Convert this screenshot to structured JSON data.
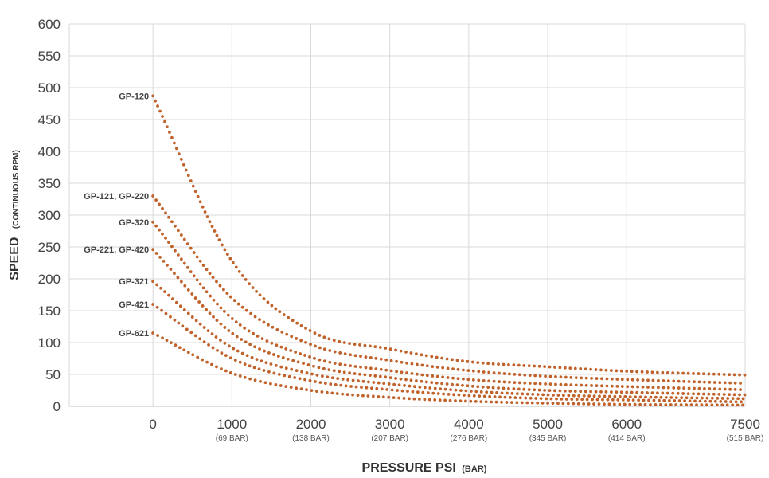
{
  "chart_data": {
    "type": "scatter",
    "title": "",
    "xlabel": "PRESSURE PSI",
    "xlabel_unit": "(BAR)",
    "ylabel": "SPEED",
    "ylabel_unit": "(CONTINUOUS RPM)",
    "xlim": [
      -1060,
      7500
    ],
    "ylim": [
      0,
      600
    ],
    "grid": true,
    "x_ticks": [
      {
        "value": 0,
        "label": "0",
        "sub": ""
      },
      {
        "value": 1000,
        "label": "1000",
        "sub": "(69 BAR)"
      },
      {
        "value": 2000,
        "label": "2000",
        "sub": "(138 BAR)"
      },
      {
        "value": 3000,
        "label": "3000",
        "sub": "(207 BAR)"
      },
      {
        "value": 4000,
        "label": "4000",
        "sub": "(276 BAR)"
      },
      {
        "value": 5000,
        "label": "5000",
        "sub": "(345 BAR)"
      },
      {
        "value": 6000,
        "label": "6000",
        "sub": "(414 BAR)"
      },
      {
        "value": 7500,
        "label": "7500",
        "sub": "(515 BAR)"
      }
    ],
    "y_ticks": [
      0,
      50,
      100,
      150,
      200,
      250,
      300,
      350,
      400,
      450,
      500,
      550,
      600
    ],
    "color": "#c0622a",
    "series": [
      {
        "name": "GP-120",
        "x": [
          0,
          1000,
          2000,
          3000,
          4000,
          5000,
          6000,
          7500
        ],
        "y": [
          487,
          228,
          118,
          90,
          70,
          62,
          55,
          49
        ]
      },
      {
        "name": "GP-121, GP-220",
        "x": [
          0,
          1000,
          2000,
          3000,
          4000,
          5000,
          6000,
          7500
        ],
        "y": [
          330,
          170,
          97,
          72,
          56,
          47,
          42,
          36
        ]
      },
      {
        "name": "GP-320",
        "x": [
          0,
          1000,
          2000,
          3000,
          4000,
          5000,
          6000,
          7500
        ],
        "y": [
          289,
          138,
          77,
          56,
          42,
          35,
          31,
          26
        ]
      },
      {
        "name": "GP-221, GP-420",
        "x": [
          0,
          1000,
          2000,
          3000,
          4000,
          5000,
          6000,
          7500
        ],
        "y": [
          246,
          115,
          64,
          45,
          32,
          25,
          22,
          18
        ]
      },
      {
        "name": "GP-321",
        "x": [
          0,
          1000,
          2000,
          3000,
          4000,
          5000,
          6000,
          7500
        ],
        "y": [
          196,
          92,
          51,
          35,
          24,
          18,
          15,
          12
        ]
      },
      {
        "name": "GP-421",
        "x": [
          0,
          1000,
          2000,
          3000,
          4000,
          5000,
          6000,
          7500
        ],
        "y": [
          160,
          75,
          40,
          26,
          17,
          12,
          10,
          7
        ]
      },
      {
        "name": "GP-621",
        "x": [
          0,
          1000,
          2000,
          3000,
          4000,
          5000,
          6000,
          7500
        ],
        "y": [
          115,
          52,
          25,
          14,
          8,
          5,
          3,
          2
        ]
      }
    ]
  }
}
